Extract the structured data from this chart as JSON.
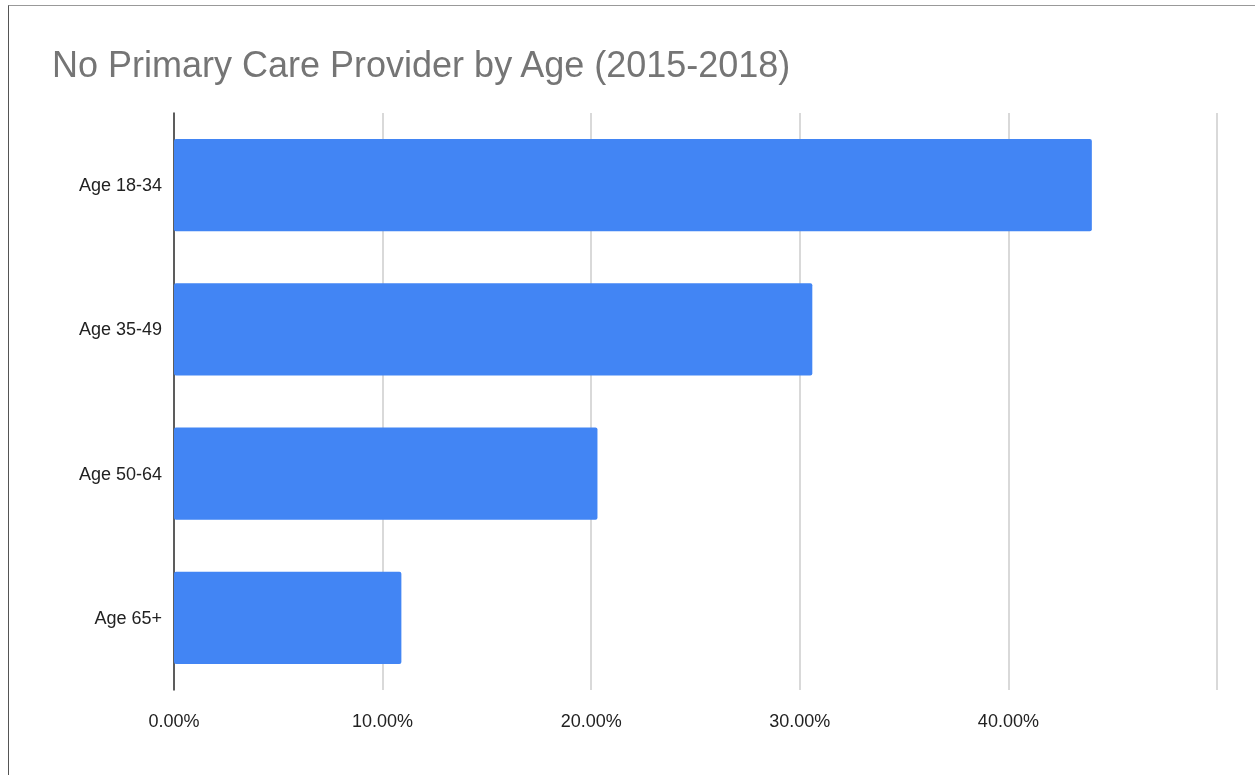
{
  "chart_data": {
    "type": "bar",
    "orientation": "horizontal",
    "title": "No Primary Care Provider by Age (2015-2018)",
    "categories": [
      "Age 18-34",
      "Age 35-49",
      "Age 50-64",
      "Age 65+"
    ],
    "values": [
      44.0,
      30.6,
      20.3,
      10.9
    ],
    "color": "#4285f4",
    "xlim": [
      0,
      50
    ],
    "xticks": [
      {
        "value": 0,
        "label": "0.00%"
      },
      {
        "value": 10,
        "label": "10.00%"
      },
      {
        "value": 20,
        "label": "20.00%"
      },
      {
        "value": 30,
        "label": "30.00%"
      },
      {
        "value": 40,
        "label": "40.00%"
      },
      {
        "value": 50,
        "label": null
      }
    ],
    "grid": "x"
  }
}
